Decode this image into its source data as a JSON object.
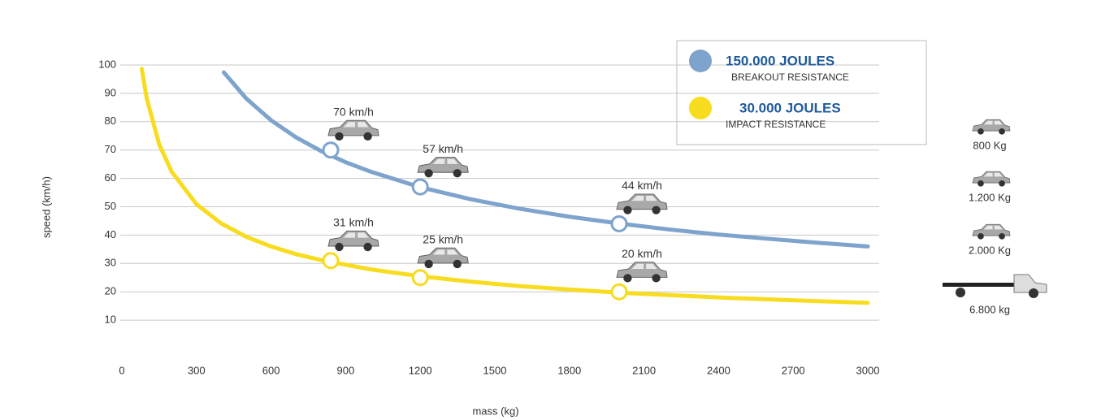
{
  "chart_data": {
    "type": "line",
    "x_label": "mass (kg)",
    "y_label": "speed (km/h)",
    "xlim": [
      0,
      3000
    ],
    "xticks": [
      0,
      300,
      600,
      900,
      1200,
      1500,
      1800,
      2100,
      2400,
      2700,
      3000
    ],
    "ylim": [
      0,
      100
    ],
    "yticks": [
      10,
      20,
      30,
      40,
      50,
      60,
      70,
      80,
      90,
      100
    ],
    "grid": true,
    "series": [
      {
        "name": "150.000 JOULES",
        "description": "BREAKOUT RESISTANCE",
        "color": "#7ea3cc",
        "x": [
          410,
          500,
          600,
          700,
          800,
          900,
          1000,
          1200,
          1400,
          1600,
          1800,
          2000,
          2200,
          2400,
          2600,
          2800,
          3000
        ],
        "values": [
          97.4,
          88.2,
          80.5,
          74.5,
          69.7,
          65.7,
          62.4,
          56.9,
          52.7,
          49.3,
          46.5,
          44.1,
          42.0,
          40.2,
          38.7,
          37.3,
          36.0
        ],
        "points": {
          "x": [
            840,
            1200,
            2000
          ],
          "values": [
            70,
            57,
            44
          ],
          "value_labels": [
            "70 km/h",
            "57 km/h",
            "44 km/h"
          ]
        }
      },
      {
        "name": "30.000 JOULES",
        "description": "IMPACT RESISTANCE",
        "color": "#f7dc1f",
        "x": [
          80,
          100,
          150,
          200,
          300,
          400,
          500,
          600,
          700,
          800,
          1000,
          1200,
          1400,
          1600,
          1800,
          2000,
          2400,
          2800,
          3000
        ],
        "values": [
          98.6,
          88.2,
          72.0,
          62.4,
          50.9,
          44.1,
          39.4,
          36.0,
          33.3,
          31.2,
          27.9,
          25.5,
          23.6,
          22.0,
          20.8,
          19.7,
          18.0,
          16.7,
          16.1
        ],
        "points": {
          "x": [
            840,
            1200,
            2000
          ],
          "values": [
            31,
            25,
            20
          ],
          "value_labels": [
            "31 km/h",
            "25 km/h",
            "20 km/h"
          ]
        }
      }
    ],
    "vehicles": [
      "800 Kg",
      "1.200 Kg",
      "2.000 Kg",
      "6.800 kg"
    ]
  }
}
